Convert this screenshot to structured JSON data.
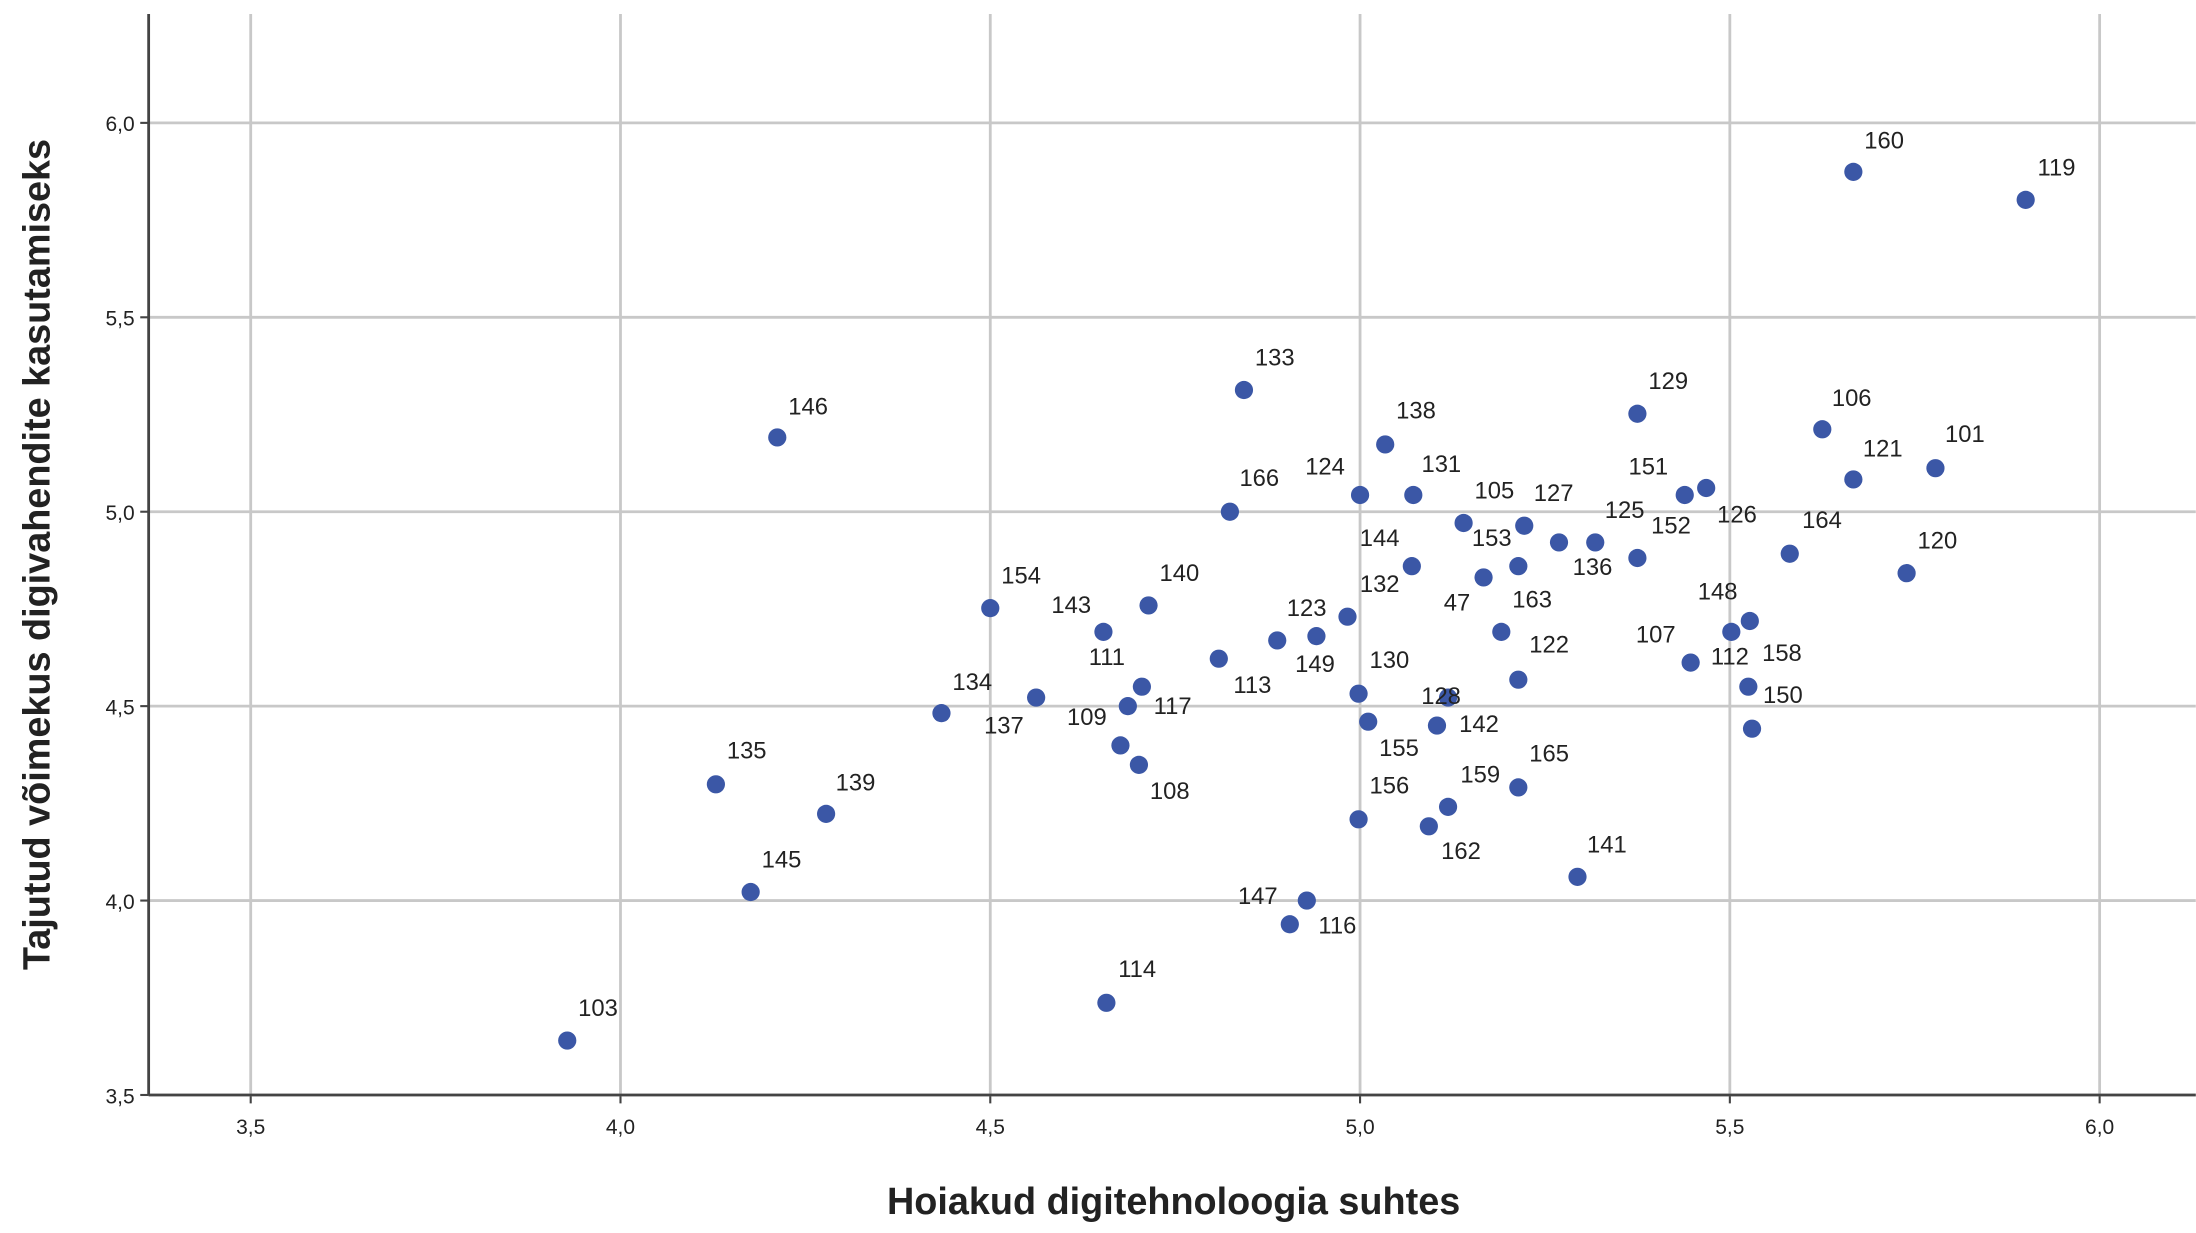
{
  "chart_data": {
    "type": "scatter",
    "x_label": "Hoiakud digitehnoloogia suhtes",
    "y_label": "Tajutud võimekus digivahendite kasutamiseks",
    "color": "#3b57a6",
    "grid": true,
    "xlim": [
      3.362,
      6.13
    ],
    "ylim": [
      3.5,
      6.28
    ],
    "xticks": [
      {
        "value": 3.5,
        "label": "3,5"
      },
      {
        "value": 4.0,
        "label": "4,0"
      },
      {
        "value": 4.5,
        "label": "4,5"
      },
      {
        "value": 5.0,
        "label": "5,0"
      },
      {
        "value": 5.5,
        "label": "5,5"
      },
      {
        "value": 6.0,
        "label": "6,0"
      }
    ],
    "yticks": [
      {
        "value": 3.5,
        "label": "3,5"
      },
      {
        "value": 4.0,
        "label": "4,0"
      },
      {
        "value": 4.5,
        "label": "4,5"
      },
      {
        "value": 5.0,
        "label": "5,0"
      },
      {
        "value": 5.5,
        "label": "5,5"
      },
      {
        "value": 6.0,
        "label": "6,0"
      }
    ],
    "point_labels": [
      "160",
      "119",
      "133",
      "146",
      "129",
      "138",
      "106",
      "101",
      "121",
      "124",
      "131",
      "151",
      "126",
      "166",
      "105",
      "127",
      "153",
      "125",
      "152",
      "164",
      "120",
      "144",
      "136",
      "47",
      "154",
      "140",
      "143",
      "132",
      "123",
      "149",
      "163",
      "148",
      "107",
      "112",
      "113",
      "111",
      "122",
      "158",
      "137",
      "130",
      "128",
      "117",
      "134",
      "155",
      "142",
      "150",
      "109",
      "108",
      "135",
      "165",
      "139",
      "159",
      "156",
      "162",
      "141",
      "145",
      "147",
      "116",
      "114",
      "103"
    ],
    "x": [
      5.667,
      5.9,
      4.843,
      4.212,
      5.375,
      5.034,
      5.625,
      5.778,
      5.667,
      5.0,
      5.072,
      5.439,
      5.468,
      4.824,
      5.14,
      5.222,
      5.269,
      5.318,
      5.375,
      5.581,
      5.739,
      5.07,
      5.214,
      5.167,
      4.5,
      4.714,
      4.653,
      4.983,
      4.941,
      4.888,
      5.191,
      5.527,
      5.502,
      5.447,
      4.809,
      4.705,
      5.214,
      5.525,
      4.562,
      4.998,
      5.119,
      4.686,
      4.434,
      5.011,
      5.104,
      5.53,
      4.676,
      4.701,
      4.129,
      5.214,
      4.278,
      5.119,
      4.998,
      5.093,
      5.294,
      4.176,
      4.928,
      4.905,
      4.657,
      3.928
    ],
    "y": [
      5.874,
      5.802,
      5.313,
      5.191,
      5.252,
      5.173,
      5.212,
      5.112,
      5.083,
      5.043,
      5.043,
      5.043,
      5.061,
      5.0,
      4.971,
      4.964,
      4.921,
      4.921,
      4.881,
      4.892,
      4.842,
      4.86,
      4.86,
      4.831,
      4.752,
      4.759,
      4.691,
      4.73,
      4.68,
      4.669,
      4.691,
      4.719,
      4.691,
      4.612,
      4.622,
      4.55,
      4.568,
      4.55,
      4.522,
      4.532,
      4.522,
      4.5,
      4.482,
      4.46,
      4.45,
      4.442,
      4.399,
      4.349,
      4.299,
      4.291,
      4.223,
      4.241,
      4.209,
      4.191,
      4.061,
      4.022,
      4.0,
      3.939,
      3.737,
      3.64
    ]
  }
}
